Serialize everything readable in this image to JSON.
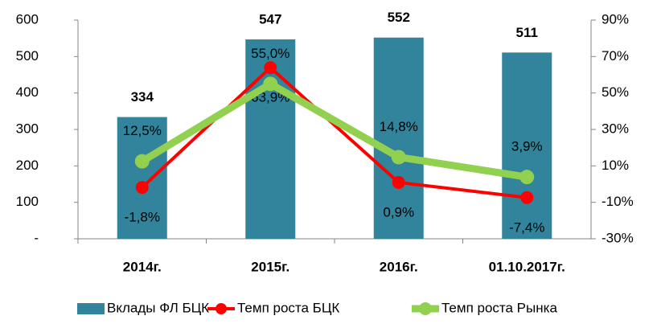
{
  "chart_data": {
    "type": "bar",
    "categories": [
      "2014г.",
      "2015г.",
      "2016г.",
      "01.10.2017г."
    ],
    "series": [
      {
        "name": "Вклады ФЛ БЦК",
        "type": "bar",
        "color": "#31849b",
        "values": [
          334,
          547,
          552,
          511
        ]
      },
      {
        "name": "Темп роста БЦК",
        "type": "line",
        "axis": "y2",
        "color": "#ff0000",
        "values": [
          -1.8,
          63.9,
          0.9,
          -7.4
        ],
        "value_labels": [
          "-1,8%",
          "63,9%",
          "0,9%",
          "-7,4%"
        ]
      },
      {
        "name": "Темп роста Рынка",
        "type": "line",
        "axis": "y2",
        "color": "#92d050",
        "values": [
          12.5,
          55.0,
          14.8,
          3.9
        ],
        "value_labels": [
          "12,5%",
          "55,0%",
          "14,8%",
          "3,9%"
        ]
      }
    ],
    "ylim": [
      0,
      600
    ],
    "yticks": [
      {
        "value": 0,
        "label": "-"
      },
      100,
      200,
      300,
      400,
      500,
      600
    ],
    "y2lim": [
      -30,
      90
    ],
    "y2ticks": [
      {
        "value": -30,
        "label": "-30%"
      },
      {
        "value": -10,
        "label": "-10%"
      },
      {
        "value": 10,
        "label": "10%"
      },
      {
        "value": 30,
        "label": "30%"
      },
      {
        "value": 50,
        "label": "50%"
      },
      {
        "value": 70,
        "label": "70%"
      },
      {
        "value": 90,
        "label": "90%"
      }
    ],
    "grid": false,
    "legend": "bottom"
  }
}
